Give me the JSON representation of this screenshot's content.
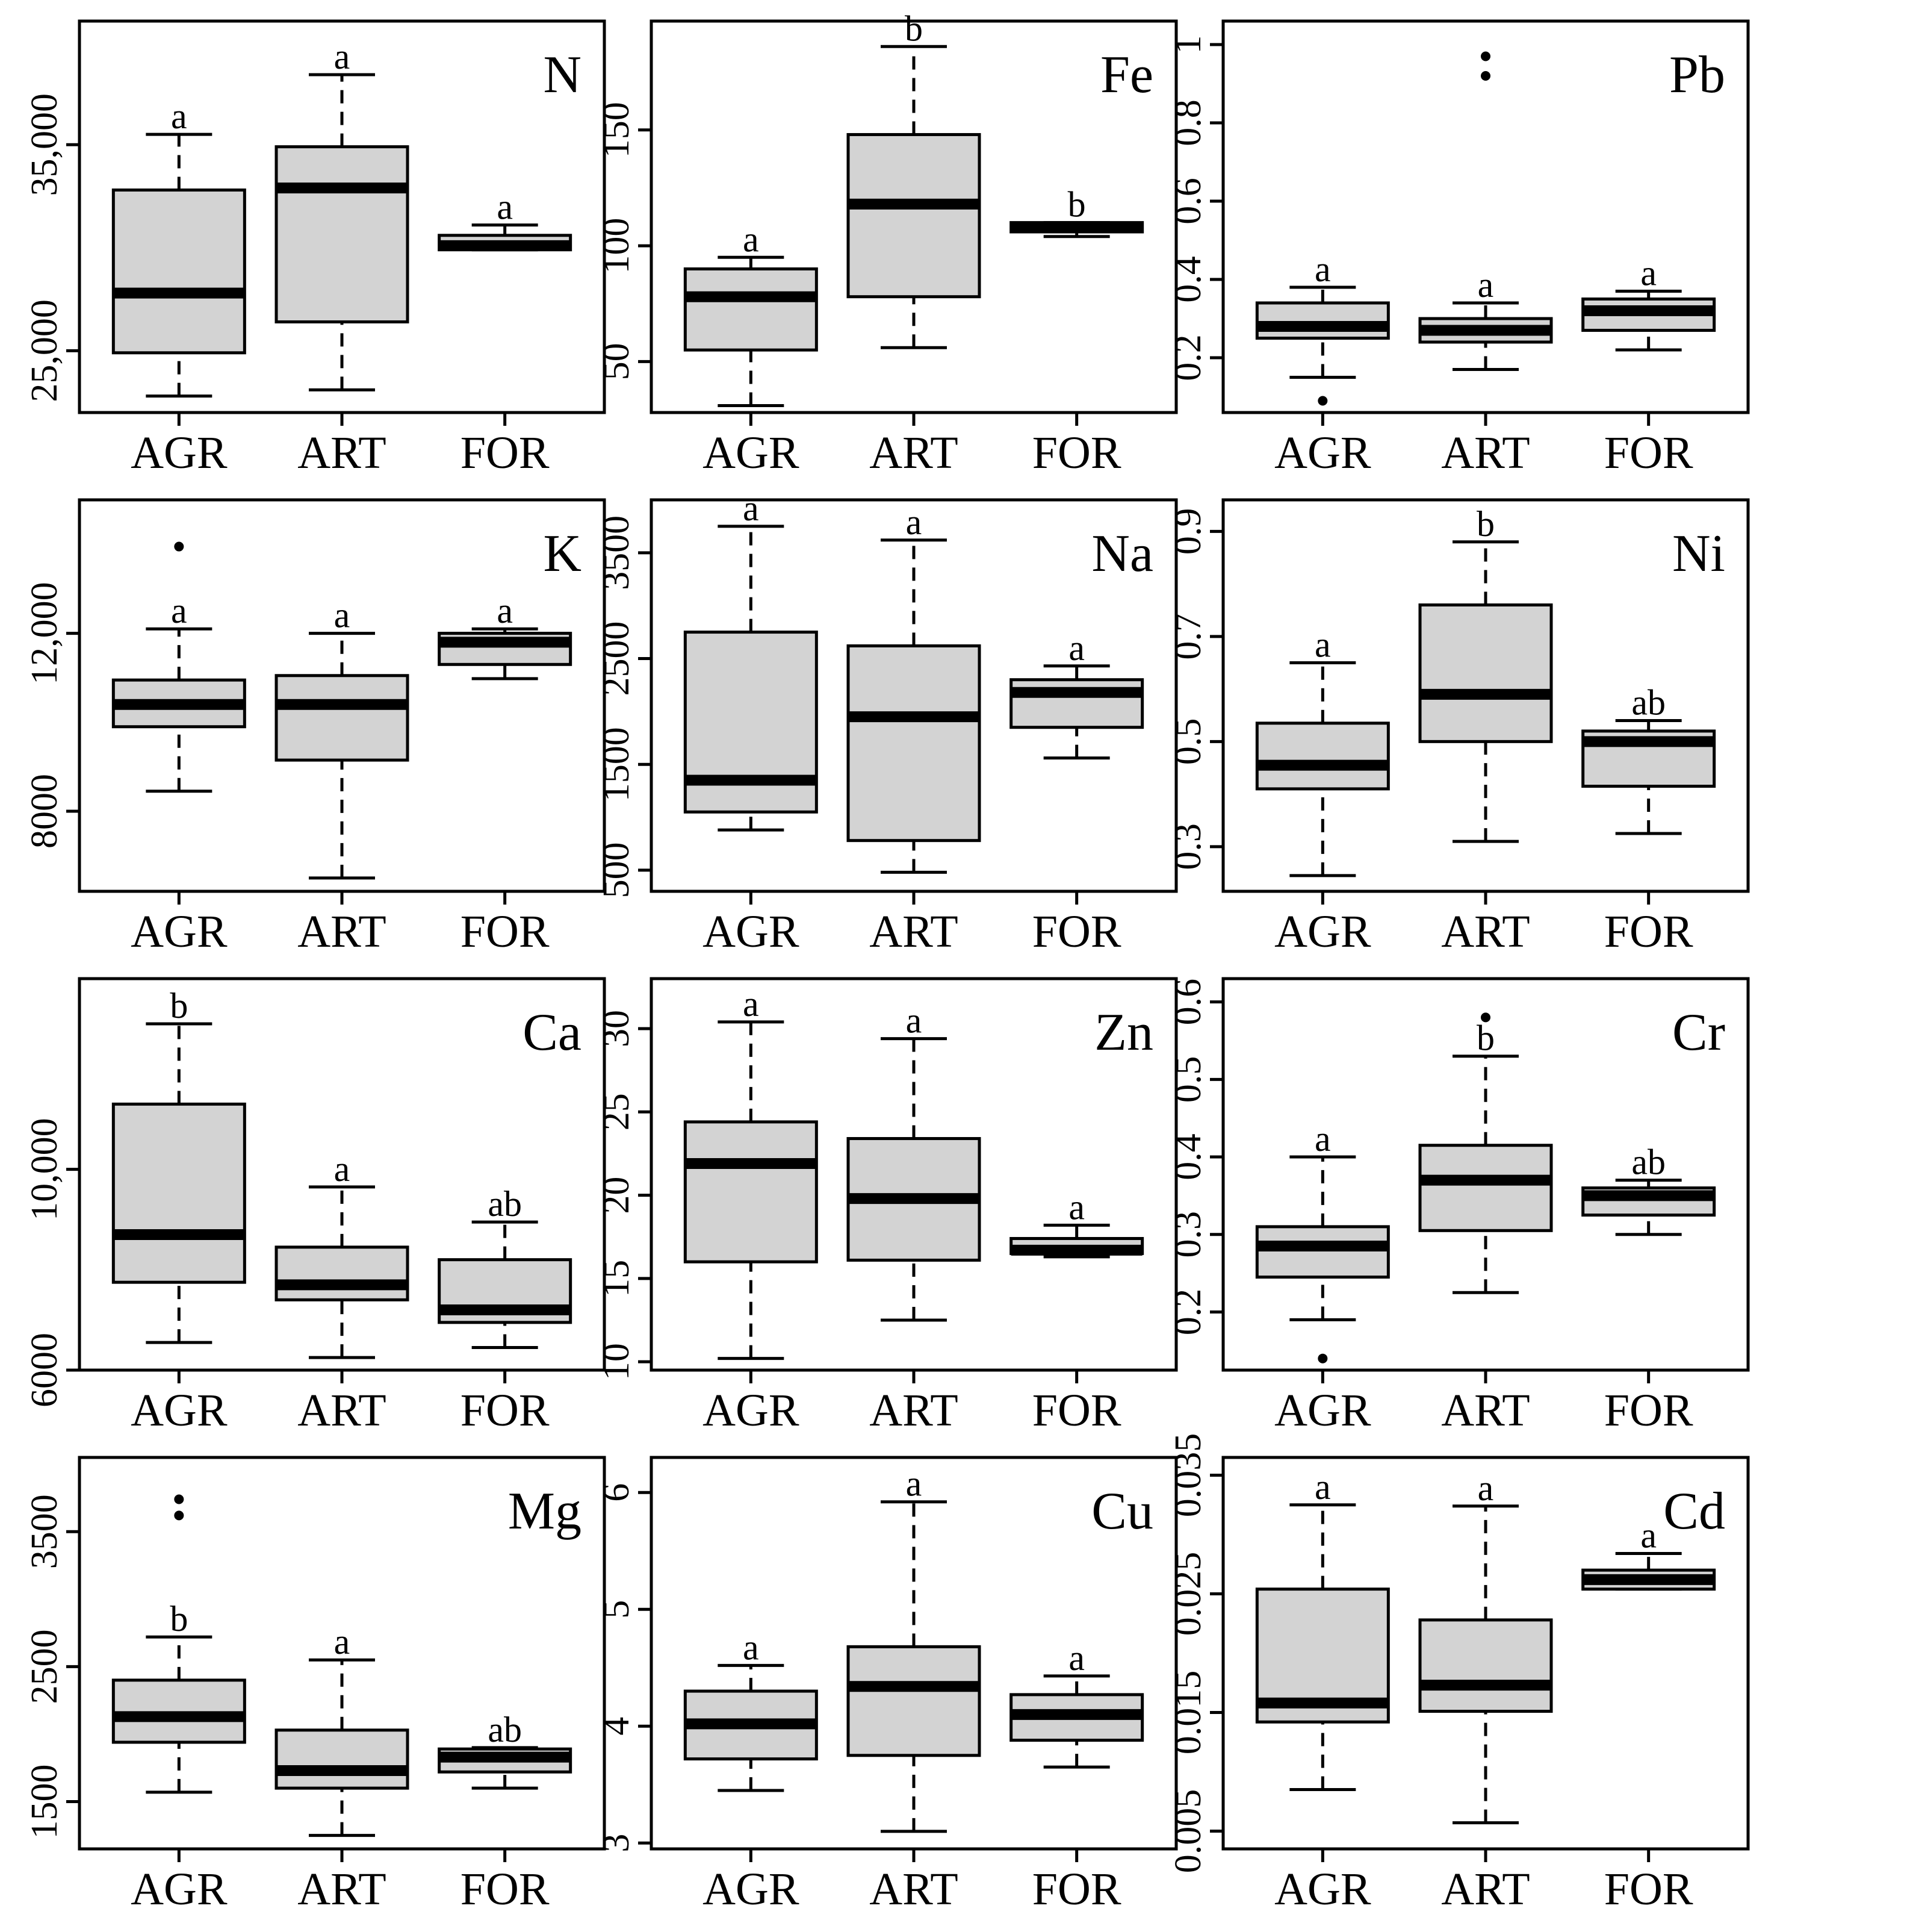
{
  "chart_data": [
    {
      "type": "box",
      "title": "N",
      "categories": [
        "AGR",
        "ART",
        "FOR"
      ],
      "ylim": [
        22000,
        41000
      ],
      "yticks": [
        25000,
        35000
      ],
      "ytick_labels": [
        "25,000",
        "35,000"
      ],
      "boxes": [
        {
          "min": 22800,
          "q1": 24900,
          "median": 27800,
          "q3": 32800,
          "max": 35500,
          "outliers": [],
          "letter": "a"
        },
        {
          "min": 23100,
          "q1": 26400,
          "median": 32900,
          "q3": 34900,
          "max": 38400,
          "outliers": [],
          "letter": "a"
        },
        {
          "min": 29900,
          "q1": 29900,
          "median": 30100,
          "q3": 30600,
          "max": 31100,
          "outliers": [],
          "letter": "a"
        }
      ]
    },
    {
      "type": "box",
      "title": "Fe",
      "categories": [
        "AGR",
        "ART",
        "FOR"
      ],
      "ylim": [
        28,
        197
      ],
      "yticks": [
        50,
        100,
        150
      ],
      "ytick_labels": [
        "50",
        "100",
        "150"
      ],
      "boxes": [
        {
          "min": 31,
          "q1": 55,
          "median": 78,
          "q3": 90,
          "max": 95,
          "outliers": [],
          "letter": "a"
        },
        {
          "min": 56,
          "q1": 78,
          "median": 118,
          "q3": 148,
          "max": 186,
          "outliers": [],
          "letter": "b"
        },
        {
          "min": 104,
          "q1": 106,
          "median": 108,
          "q3": 110,
          "max": 110,
          "outliers": [],
          "letter": "b"
        }
      ]
    },
    {
      "type": "box",
      "title": "Pb",
      "categories": [
        "AGR",
        "ART",
        "FOR"
      ],
      "ylim": [
        0.06,
        1.06
      ],
      "yticks": [
        0.2,
        0.4,
        0.6,
        0.8,
        1.0
      ],
      "ytick_labels": [
        "0.2",
        "0.4",
        "0.6",
        "0.8",
        "1"
      ],
      "boxes": [
        {
          "min": 0.15,
          "q1": 0.25,
          "median": 0.28,
          "q3": 0.34,
          "max": 0.38,
          "outliers": [
            0.09
          ],
          "letter": "a"
        },
        {
          "min": 0.17,
          "q1": 0.24,
          "median": 0.27,
          "q3": 0.3,
          "max": 0.34,
          "outliers": [
            0.92,
            0.97
          ],
          "letter": "a"
        },
        {
          "min": 0.22,
          "q1": 0.27,
          "median": 0.32,
          "q3": 0.35,
          "max": 0.37,
          "outliers": [],
          "letter": "a"
        }
      ]
    },
    {
      "type": "box",
      "title": "K",
      "categories": [
        "AGR",
        "ART",
        "FOR"
      ],
      "ylim": [
        6200,
        15000
      ],
      "yticks": [
        8000,
        12000
      ],
      "ytick_labels": [
        "8000",
        "12,000"
      ],
      "boxes": [
        {
          "min": 8450,
          "q1": 9900,
          "median": 10400,
          "q3": 10950,
          "max": 12100,
          "outliers": [
            13950
          ],
          "letter": "a"
        },
        {
          "min": 6500,
          "q1": 9150,
          "median": 10400,
          "q3": 11050,
          "max": 12000,
          "outliers": [],
          "letter": "a"
        },
        {
          "min": 10980,
          "q1": 11300,
          "median": 11800,
          "q3": 12000,
          "max": 12100,
          "outliers": [],
          "letter": "a"
        }
      ]
    },
    {
      "type": "box",
      "title": "Na",
      "categories": [
        "AGR",
        "ART",
        "FOR"
      ],
      "ylim": [
        300,
        4000
      ],
      "yticks": [
        500,
        1500,
        2500,
        3500
      ],
      "ytick_labels": [
        "500",
        "1500",
        "2500",
        "3500"
      ],
      "boxes": [
        {
          "min": 880,
          "q1": 1050,
          "median": 1350,
          "q3": 2750,
          "max": 3750,
          "outliers": [],
          "letter": "a"
        },
        {
          "min": 480,
          "q1": 780,
          "median": 1950,
          "q3": 2620,
          "max": 3620,
          "outliers": [],
          "letter": "a"
        },
        {
          "min": 1560,
          "q1": 1850,
          "median": 2180,
          "q3": 2300,
          "max": 2430,
          "outliers": [],
          "letter": "a"
        }
      ]
    },
    {
      "type": "box",
      "title": "Ni",
      "categories": [
        "AGR",
        "ART",
        "FOR"
      ],
      "ylim": [
        0.215,
        0.96
      ],
      "yticks": [
        0.3,
        0.5,
        0.7,
        0.9
      ],
      "ytick_labels": [
        "0.3",
        "0.5",
        "0.7",
        "0.9"
      ],
      "boxes": [
        {
          "min": 0.245,
          "q1": 0.41,
          "median": 0.455,
          "q3": 0.535,
          "max": 0.65,
          "outliers": [],
          "letter": "a"
        },
        {
          "min": 0.31,
          "q1": 0.5,
          "median": 0.59,
          "q3": 0.76,
          "max": 0.88,
          "outliers": [],
          "letter": "b"
        },
        {
          "min": 0.325,
          "q1": 0.415,
          "median": 0.5,
          "q3": 0.52,
          "max": 0.54,
          "outliers": [],
          "letter": "ab"
        }
      ]
    },
    {
      "type": "box",
      "title": "Ca",
      "categories": [
        "AGR",
        "ART",
        "FOR"
      ],
      "ylim": [
        6000,
        13800
      ],
      "yticks": [
        6000,
        10000
      ],
      "ytick_labels": [
        "6000",
        "10,000"
      ],
      "boxes": [
        {
          "min": 6550,
          "q1": 7750,
          "median": 8700,
          "q3": 11300,
          "max": 12900,
          "outliers": [],
          "letter": "b"
        },
        {
          "min": 6250,
          "q1": 7400,
          "median": 7700,
          "q3": 8450,
          "max": 9650,
          "outliers": [],
          "letter": "a"
        },
        {
          "min": 6450,
          "q1": 6950,
          "median": 7200,
          "q3": 8200,
          "max": 8950,
          "outliers": [],
          "letter": "ab"
        }
      ]
    },
    {
      "type": "box",
      "title": "Zn",
      "categories": [
        "AGR",
        "ART",
        "FOR"
      ],
      "ylim": [
        9.5,
        33
      ],
      "yticks": [
        10,
        15,
        20,
        25,
        30
      ],
      "ytick_labels": [
        "10",
        "15",
        "20",
        "25",
        "30"
      ],
      "boxes": [
        {
          "min": 10.2,
          "q1": 16.0,
          "median": 21.9,
          "q3": 24.4,
          "max": 30.4,
          "outliers": [],
          "letter": "a"
        },
        {
          "min": 12.5,
          "q1": 16.1,
          "median": 19.8,
          "q3": 23.4,
          "max": 29.4,
          "outliers": [],
          "letter": "a"
        },
        {
          "min": 16.3,
          "q1": 16.5,
          "median": 16.7,
          "q3": 17.4,
          "max": 18.2,
          "outliers": [],
          "letter": "a"
        }
      ]
    },
    {
      "type": "box",
      "title": "Cr",
      "categories": [
        "AGR",
        "ART",
        "FOR"
      ],
      "ylim": [
        0.125,
        0.63
      ],
      "yticks": [
        0.2,
        0.3,
        0.4,
        0.5,
        0.6
      ],
      "ytick_labels": [
        "0.2",
        "0.3",
        "0.4",
        "0.5",
        "0.6"
      ],
      "boxes": [
        {
          "min": 0.19,
          "q1": 0.245,
          "median": 0.285,
          "q3": 0.31,
          "max": 0.4,
          "outliers": [
            0.14
          ],
          "letter": "a"
        },
        {
          "min": 0.225,
          "q1": 0.305,
          "median": 0.37,
          "q3": 0.415,
          "max": 0.53,
          "outliers": [
            0.58
          ],
          "letter": "b"
        },
        {
          "min": 0.3,
          "q1": 0.325,
          "median": 0.35,
          "q3": 0.36,
          "max": 0.37,
          "outliers": [],
          "letter": "ab"
        }
      ]
    },
    {
      "type": "box",
      "title": "Mg",
      "categories": [
        "AGR",
        "ART",
        "FOR"
      ],
      "ylim": [
        1150,
        4050
      ],
      "yticks": [
        1500,
        2500,
        3500
      ],
      "ytick_labels": [
        "1500",
        "2500",
        "3500"
      ],
      "boxes": [
        {
          "min": 1570,
          "q1": 1940,
          "median": 2130,
          "q3": 2400,
          "max": 2720,
          "outliers": [
            3620,
            3740
          ],
          "letter": "b"
        },
        {
          "min": 1250,
          "q1": 1600,
          "median": 1730,
          "q3": 2030,
          "max": 2550,
          "outliers": [],
          "letter": "a"
        },
        {
          "min": 1600,
          "q1": 1720,
          "median": 1830,
          "q3": 1890,
          "max": 1900,
          "outliers": [],
          "letter": "ab"
        }
      ]
    },
    {
      "type": "box",
      "title": "Cu",
      "categories": [
        "AGR",
        "ART",
        "FOR"
      ],
      "ylim": [
        2.95,
        6.3
      ],
      "yticks": [
        3,
        4,
        5,
        6
      ],
      "ytick_labels": [
        "3",
        "4",
        "5",
        "6"
      ],
      "boxes": [
        {
          "min": 3.45,
          "q1": 3.72,
          "median": 4.02,
          "q3": 4.3,
          "max": 4.52,
          "outliers": [],
          "letter": "a"
        },
        {
          "min": 3.1,
          "q1": 3.75,
          "median": 4.34,
          "q3": 4.68,
          "max": 5.92,
          "outliers": [],
          "letter": "a"
        },
        {
          "min": 3.65,
          "q1": 3.88,
          "median": 4.1,
          "q3": 4.27,
          "max": 4.43,
          "outliers": [],
          "letter": "a"
        }
      ]
    },
    {
      "type": "box",
      "title": "Cd",
      "categories": [
        "AGR",
        "ART",
        "FOR"
      ],
      "ylim": [
        0.0035,
        0.0365
      ],
      "yticks": [
        0.005,
        0.015,
        0.025,
        0.035
      ],
      "ytick_labels": [
        "0.005",
        "0.015",
        "0.025",
        "0.035"
      ],
      "boxes": [
        {
          "min": 0.0085,
          "q1": 0.0142,
          "median": 0.0158,
          "q3": 0.0254,
          "max": 0.0325,
          "outliers": [],
          "letter": "a"
        },
        {
          "min": 0.0057,
          "q1": 0.0151,
          "median": 0.0173,
          "q3": 0.0228,
          "max": 0.0324,
          "outliers": [],
          "letter": "a"
        },
        {
          "min": 0.0254,
          "q1": 0.0254,
          "median": 0.0262,
          "q3": 0.027,
          "max": 0.0284,
          "outliers": [],
          "letter": "a"
        }
      ]
    }
  ]
}
